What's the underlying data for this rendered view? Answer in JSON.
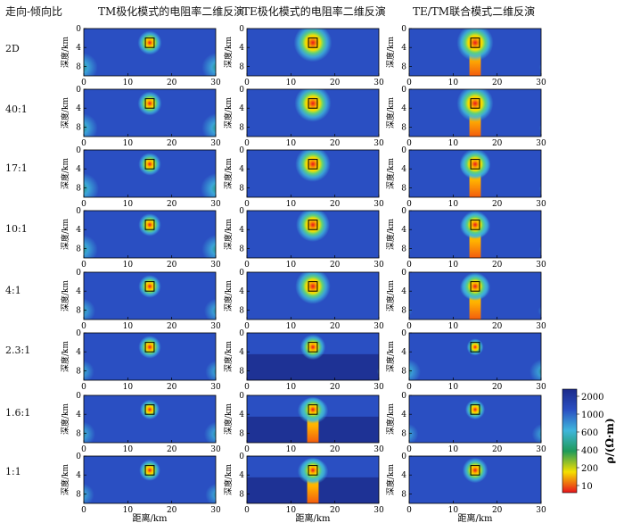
{
  "headers": {
    "row_label_title": "走向-倾向比",
    "columns": [
      "TM极化模式的电阻率二维反演",
      "TE极化模式的电阻率二维反演",
      "TE/TM联合模式二维反演"
    ]
  },
  "chart_data": {
    "type": "heatmap",
    "rows": [
      "2D",
      "40:1",
      "17:1",
      "10:1",
      "4:1",
      "2.3:1",
      "1.6:1",
      "1:1"
    ],
    "columns": [
      "TM极化模式的电阻率二维反演",
      "TE极化模式的电阻率二维反演",
      "TE/TM联合模式二维反演"
    ],
    "xlabel": "距离/km",
    "ylabel": "深度/km",
    "xlim": [
      0,
      30
    ],
    "ylim": [
      0,
      10
    ],
    "x_ticks": [
      0,
      10,
      20,
      30
    ],
    "y_ticks": [
      0,
      4,
      8
    ],
    "target_block": {
      "x": [
        14,
        16
      ],
      "depth": [
        2,
        4
      ]
    },
    "colorbar": {
      "label": "ρ/(Ω·m)",
      "ticks": [
        2000,
        1000,
        600,
        400,
        200,
        10
      ],
      "colors": [
        "#1b2a8a",
        "#2a4fc2",
        "#3fb6dc",
        "#1f9a5a",
        "#f5e000",
        "#e8141c"
      ]
    },
    "cells": [
      [
        {
          "core": 0.85,
          "plume": 0.0,
          "side": 0.7
        },
        {
          "core": 1.35,
          "plume": 0.0,
          "side": 0.1
        },
        {
          "core": 1.3,
          "plume": 0.3,
          "side": 0.2
        }
      ],
      [
        {
          "core": 0.85,
          "plume": 0.0,
          "side": 0.7
        },
        {
          "core": 1.3,
          "plume": 0.0,
          "side": 0.1
        },
        {
          "core": 1.3,
          "plume": 0.3,
          "side": 0.2
        }
      ],
      [
        {
          "core": 0.8,
          "plume": 0.0,
          "side": 0.75
        },
        {
          "core": 1.25,
          "plume": 0.0,
          "side": 0.1
        },
        {
          "core": 1.1,
          "plume": 0.25,
          "side": 0.2
        }
      ],
      [
        {
          "core": 0.8,
          "plume": 0.0,
          "side": 0.7
        },
        {
          "core": 1.2,
          "plume": 0.0,
          "side": 0.1
        },
        {
          "core": 1.0,
          "plume": 0.2,
          "side": 0.2
        }
      ],
      [
        {
          "core": 0.8,
          "plume": 0.0,
          "side": 0.6
        },
        {
          "core": 1.25,
          "plume": 0.0,
          "side": 0.1
        },
        {
          "core": 1.0,
          "plume": 0.2,
          "side": 0.25
        }
      ],
      [
        {
          "core": 0.8,
          "plume": 0.0,
          "side": 0.55
        },
        {
          "core": 0.9,
          "plume": 0.0,
          "side": 0.2
        },
        {
          "core": 0.6,
          "plume": 0.0,
          "side": 0.6
        }
      ],
      [
        {
          "core": 0.7,
          "plume": 0.0,
          "side": 0.6
        },
        {
          "core": 0.9,
          "plume": 1.0,
          "side": 0.1
        },
        {
          "core": 0.7,
          "plume": 0.0,
          "side": 0.5
        }
      ],
      [
        {
          "core": 0.75,
          "plume": 0.0,
          "side": 0.55
        },
        {
          "core": 0.9,
          "plume": 1.2,
          "side": 0.1
        },
        {
          "core": 0.9,
          "plume": 0.0,
          "side": 0.1
        }
      ]
    ]
  }
}
